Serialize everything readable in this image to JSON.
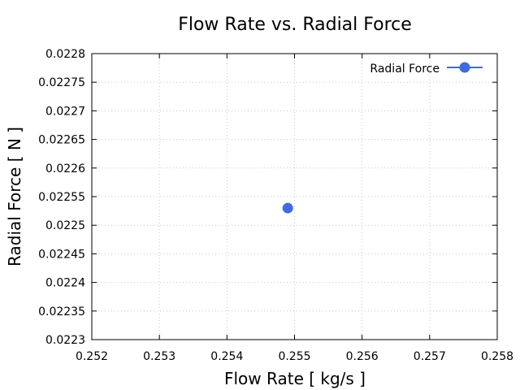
{
  "chart_data": {
    "type": "scatter",
    "title": "Flow Rate vs. Radial Force",
    "xlabel": "Flow Rate [ kg/s ]",
    "ylabel": "Radial Force [ N ]",
    "xlim": [
      0.252,
      0.258
    ],
    "ylim": [
      0.0223,
      0.0228
    ],
    "xticks": [
      "0.252",
      "0.253",
      "0.254",
      "0.255",
      "0.256",
      "0.257",
      "0.258"
    ],
    "yticks": [
      "0.0223",
      "0.02235",
      "0.0224",
      "0.02245",
      "0.0225",
      "0.02255",
      "0.0226",
      "0.02265",
      "0.0227",
      "0.02275",
      "0.0228"
    ],
    "grid": true,
    "legend_position": "top-right",
    "series": [
      {
        "name": "Radial Force",
        "color": "#4169e1",
        "points": [
          {
            "x": 0.2549,
            "y": 0.02253
          }
        ]
      }
    ]
  }
}
